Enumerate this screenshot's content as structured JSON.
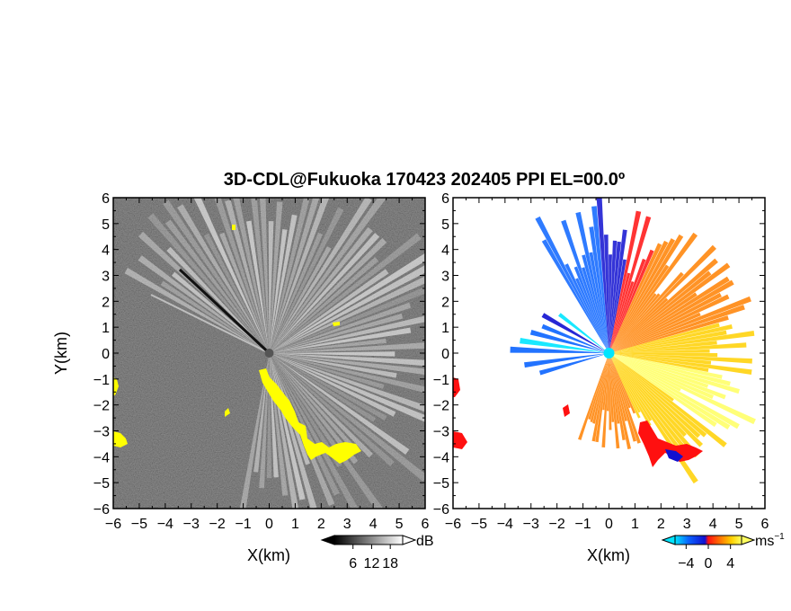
{
  "title": "3D-CDL@Fukuoka 170423 202405 PPI EL=00.0º",
  "chart_data": [
    {
      "type": "heatmap",
      "name": "reflectivity-ppi",
      "xlabel": "X(km)",
      "ylabel": "Y(km)",
      "xlim": [
        -6,
        6
      ],
      "ylim": [
        -6,
        6
      ],
      "xticks": [
        "−6",
        "−5",
        "−4",
        "−3",
        "−2",
        "−1",
        "0",
        "1",
        "2",
        "3",
        "4",
        "5",
        "6"
      ],
      "yticks": [
        "6",
        "5",
        "4",
        "3",
        "2",
        "1",
        "0",
        "−1",
        "−2",
        "−3",
        "−4",
        "−5",
        "−6"
      ],
      "colorbar": {
        "unit": "dB",
        "ticks": [
          "6",
          "12",
          "18"
        ],
        "range": [
          0,
          22
        ],
        "colors": [
          "#000000",
          "#ffffff"
        ]
      },
      "background_color": "#2b2b2b",
      "highlight_color": "#ffff00"
    },
    {
      "type": "heatmap",
      "name": "doppler-velocity-ppi",
      "xlabel": "X(km)",
      "xlim": [
        -6,
        6
      ],
      "ylim": [
        -6,
        6
      ],
      "xticks": [
        "−6",
        "−5",
        "−4",
        "−3",
        "−2",
        "−1",
        "0",
        "1",
        "2",
        "3",
        "4",
        "5",
        "6"
      ],
      "yticks": [
        "6",
        "5",
        "4",
        "3",
        "2",
        "1",
        "0",
        "−1",
        "−2",
        "−3",
        "−4",
        "−5",
        "−6"
      ],
      "colorbar": {
        "unit": "ms",
        "unit_exp": "−1",
        "ticks": [
          "−4",
          "0",
          "4"
        ],
        "range": [
          -6,
          6
        ],
        "colors": [
          "#00e5ff",
          "#0a64ff",
          "#1010d0",
          "#ff1010",
          "#ff8000",
          "#ffd000",
          "#ffff60"
        ]
      },
      "background_color": "#ffffff"
    }
  ]
}
